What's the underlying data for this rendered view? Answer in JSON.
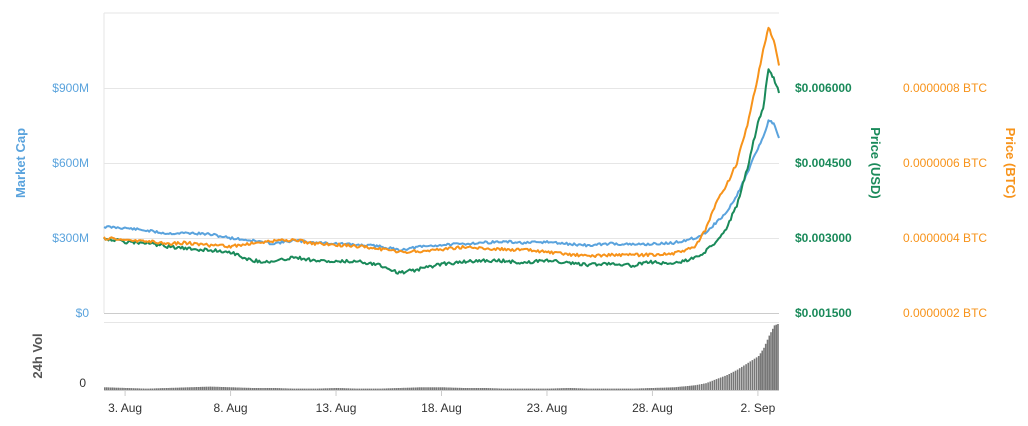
{
  "chart_data": {
    "type": "line",
    "grid": true,
    "legend": "none",
    "x_tick_labels": [
      "3. Aug",
      "8. Aug",
      "13. Aug",
      "18. Aug",
      "23. Aug",
      "28. Aug",
      "2. Sep"
    ],
    "x_range": [
      "2018-08-02",
      "2018-09-03"
    ],
    "axes": {
      "market_cap": {
        "label": "Market Cap",
        "range": [
          0,
          1200000000
        ],
        "ticks": [
          "$0",
          "$300M",
          "$600M",
          "$900M"
        ],
        "tick_values": [
          0,
          300000000,
          600000000,
          900000000
        ],
        "color": "#5aa3dd"
      },
      "price_usd": {
        "label": "Price (USD)",
        "range": [
          0.0015,
          0.0075
        ],
        "ticks": [
          "$0.001500",
          "$0.003000",
          "$0.004500",
          "$0.006000"
        ],
        "tick_values": [
          0.0015,
          0.003,
          0.0045,
          0.006
        ],
        "color": "#1a8a5a"
      },
      "price_btc": {
        "label": "Price (BTC)",
        "range": [
          2e-07,
          1e-06
        ],
        "ticks": [
          "0.0000002 BTC",
          "0.0000004 BTC",
          "0.0000006 BTC",
          "0.0000008 BTC"
        ],
        "tick_values": [
          2e-07,
          4e-07,
          6e-07,
          8e-07
        ],
        "color": "#f7931a"
      },
      "volume": {
        "label": "24h Vol",
        "range": [
          0,
          100
        ],
        "ticks": [
          "0"
        ],
        "tick_values": [
          0
        ],
        "color": "#555555"
      }
    },
    "series": [
      {
        "name": "Market Cap",
        "axis": "market_cap",
        "color": "#5aa3dd",
        "x": [
          "2018-08-02",
          "2018-08-03",
          "2018-08-04",
          "2018-08-05",
          "2018-08-06",
          "2018-08-07",
          "2018-08-08",
          "2018-08-09",
          "2018-08-10",
          "2018-08-11",
          "2018-08-12",
          "2018-08-13",
          "2018-08-14",
          "2018-08-15",
          "2018-08-16",
          "2018-08-17",
          "2018-08-18",
          "2018-08-19",
          "2018-08-20",
          "2018-08-21",
          "2018-08-22",
          "2018-08-23",
          "2018-08-24",
          "2018-08-25",
          "2018-08-26",
          "2018-08-27",
          "2018-08-28",
          "2018-08-29",
          "2018-08-30",
          "2018-08-30 12:00",
          "2018-08-31",
          "2018-08-31 12:00",
          "2018-09-01",
          "2018-09-01 12:00",
          "2018-09-02",
          "2018-09-02 06:00",
          "2018-09-02 12:00",
          "2018-09-02 18:00",
          "2018-09-03"
        ],
        "values": [
          345000000,
          340000000,
          330000000,
          318000000,
          320000000,
          315000000,
          300000000,
          290000000,
          278000000,
          290000000,
          282000000,
          278000000,
          272000000,
          268000000,
          252000000,
          265000000,
          272000000,
          276000000,
          282000000,
          285000000,
          280000000,
          284000000,
          276000000,
          270000000,
          278000000,
          274000000,
          276000000,
          280000000,
          300000000,
          320000000,
          360000000,
          400000000,
          470000000,
          560000000,
          660000000,
          700000000,
          770000000,
          760000000,
          700000000
        ]
      },
      {
        "name": "Price (USD)",
        "axis": "price_usd",
        "color": "#1a8a5a",
        "x": [
          "2018-08-02",
          "2018-08-03",
          "2018-08-04",
          "2018-08-05",
          "2018-08-06",
          "2018-08-07",
          "2018-08-08",
          "2018-08-09",
          "2018-08-10",
          "2018-08-11",
          "2018-08-12",
          "2018-08-13",
          "2018-08-14",
          "2018-08-15",
          "2018-08-16",
          "2018-08-17",
          "2018-08-18",
          "2018-08-19",
          "2018-08-20",
          "2018-08-21",
          "2018-08-22",
          "2018-08-23",
          "2018-08-24",
          "2018-08-25",
          "2018-08-26",
          "2018-08-27",
          "2018-08-28",
          "2018-08-29",
          "2018-08-30",
          "2018-08-30 12:00",
          "2018-08-31",
          "2018-08-31 12:00",
          "2018-09-01",
          "2018-09-01 12:00",
          "2018-09-02",
          "2018-09-02 06:00",
          "2018-09-02 12:00",
          "2018-09-02 18:00",
          "2018-09-03"
        ],
        "values": [
          0.003,
          0.00292,
          0.0029,
          0.00283,
          0.00278,
          0.00276,
          0.00272,
          0.00255,
          0.00252,
          0.00262,
          0.00255,
          0.00252,
          0.00254,
          0.00247,
          0.0023,
          0.00238,
          0.00248,
          0.00252,
          0.00255,
          0.00254,
          0.0025,
          0.00256,
          0.0025,
          0.00246,
          0.0025,
          0.00245,
          0.00252,
          0.00248,
          0.0026,
          0.00272,
          0.00292,
          0.0032,
          0.00365,
          0.0044,
          0.0053,
          0.0056,
          0.0064,
          0.0062,
          0.0059
        ]
      },
      {
        "name": "Price (BTC)",
        "axis": "price_btc",
        "color": "#f7931a",
        "x": [
          "2018-08-02",
          "2018-08-03",
          "2018-08-04",
          "2018-08-05",
          "2018-08-06",
          "2018-08-07",
          "2018-08-08",
          "2018-08-09",
          "2018-08-10",
          "2018-08-11",
          "2018-08-12",
          "2018-08-13",
          "2018-08-14",
          "2018-08-15",
          "2018-08-16",
          "2018-08-17",
          "2018-08-18",
          "2018-08-19",
          "2018-08-20",
          "2018-08-21",
          "2018-08-22",
          "2018-08-23",
          "2018-08-24",
          "2018-08-25",
          "2018-08-26",
          "2018-08-27",
          "2018-08-28",
          "2018-08-29",
          "2018-08-30",
          "2018-08-30 12:00",
          "2018-08-31",
          "2018-08-31 12:00",
          "2018-09-01",
          "2018-09-01 12:00",
          "2018-09-02",
          "2018-09-02 06:00",
          "2018-09-02 12:00",
          "2018-09-02 18:00",
          "2018-09-03"
        ],
        "values": [
          4e-07,
          3.95e-07,
          3.92e-07,
          3.85e-07,
          3.87e-07,
          3.8e-07,
          3.78e-07,
          3.85e-07,
          3.92e-07,
          3.95e-07,
          3.85e-07,
          3.82e-07,
          3.78e-07,
          3.72e-07,
          3.62e-07,
          3.65e-07,
          3.7e-07,
          3.76e-07,
          3.72e-07,
          3.7e-07,
          3.68e-07,
          3.62e-07,
          3.56e-07,
          3.52e-07,
          3.55e-07,
          3.54e-07,
          3.56e-07,
          3.58e-07,
          3.75e-07,
          4.2e-07,
          4.9e-07,
          5.4e-07,
          6e-07,
          7e-07,
          8.3e-07,
          9e-07,
          9.6e-07,
          9.3e-07,
          8.6e-07
        ]
      },
      {
        "name": "24h Vol",
        "axis": "volume",
        "color": "#555555",
        "type": "bar",
        "x": [
          "2018-08-02",
          "2018-08-03",
          "2018-08-04",
          "2018-08-05",
          "2018-08-06",
          "2018-08-07",
          "2018-08-08",
          "2018-08-09",
          "2018-08-10",
          "2018-08-11",
          "2018-08-12",
          "2018-08-13",
          "2018-08-14",
          "2018-08-15",
          "2018-08-16",
          "2018-08-17",
          "2018-08-18",
          "2018-08-19",
          "2018-08-20",
          "2018-08-21",
          "2018-08-22",
          "2018-08-23",
          "2018-08-24",
          "2018-08-25",
          "2018-08-26",
          "2018-08-27",
          "2018-08-28",
          "2018-08-29",
          "2018-08-30",
          "2018-08-30 12:00",
          "2018-08-31",
          "2018-08-31 12:00",
          "2018-09-01",
          "2018-09-01 12:00",
          "2018-09-02",
          "2018-09-02 06:00",
          "2018-09-02 12:00",
          "2018-09-02 18:00",
          "2018-09-03"
        ],
        "values": [
          4,
          3,
          2,
          3,
          4,
          5,
          4,
          3,
          3,
          2,
          2,
          3,
          2,
          2,
          3,
          4,
          4,
          3,
          3,
          2,
          2,
          2,
          3,
          2,
          2,
          2,
          3,
          4,
          7,
          10,
          16,
          22,
          30,
          40,
          50,
          62,
          80,
          95,
          98
        ]
      }
    ]
  }
}
